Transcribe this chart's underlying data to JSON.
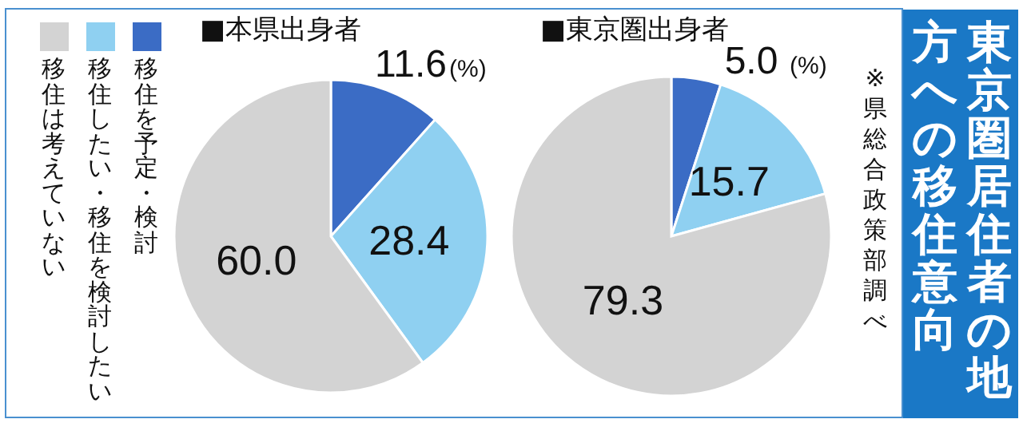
{
  "chart_data": [
    {
      "type": "pie",
      "title": "■本県出身者",
      "categories": [
        "移住を予定・検討",
        "移住したい・移住を検討したい",
        "移住は考えていない"
      ],
      "values": [
        11.6,
        28.4,
        60.0
      ],
      "value_labels": [
        "11.6",
        "28.4",
        "60.0"
      ],
      "colors": [
        "#3b6cc5",
        "#8fd0f1",
        "#d3d3d3"
      ],
      "legend": "left",
      "annotations": [
        "(%)"
      ]
    },
    {
      "type": "pie",
      "title": "■東京圏出身者",
      "categories": [
        null,
        null,
        null
      ],
      "values": [
        5.0,
        15.7,
        79.3
      ],
      "value_labels": [
        "5.0",
        "15.7",
        "79.3"
      ],
      "colors": [
        "#3b6cc5",
        "#8fd0f1",
        "#d3d3d3"
      ],
      "annotations": [
        "(%)",
        "※県総合政策部調べ",
        "東京圏居住者の地方への移住意向"
      ]
    }
  ]
}
